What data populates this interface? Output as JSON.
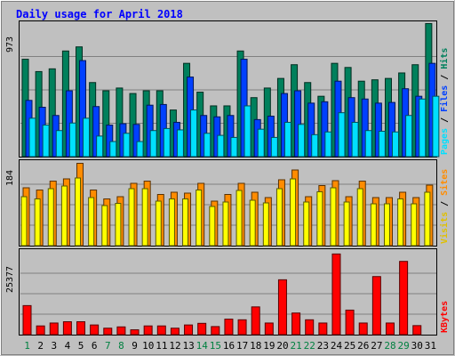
{
  "title": "Daily usage for April 2018",
  "chart_data": [
    {
      "type": "bar",
      "panel": "requests",
      "axis_max_label": "973",
      "ylim": [
        0,
        973
      ],
      "categories": [
        "1",
        "2",
        "3",
        "4",
        "5",
        "6",
        "7",
        "8",
        "9",
        "10",
        "11",
        "12",
        "13",
        "14",
        "15",
        "16",
        "17",
        "18",
        "19",
        "20",
        "21",
        "22",
        "23",
        "24",
        "25",
        "26",
        "27",
        "28",
        "29",
        "30",
        "31"
      ],
      "series": [
        {
          "name": "Hits",
          "color": "#00805c",
          "values": [
            710,
            620,
            640,
            770,
            800,
            540,
            480,
            500,
            460,
            480,
            480,
            340,
            680,
            470,
            370,
            370,
            770,
            430,
            500,
            570,
            670,
            540,
            440,
            680,
            650,
            550,
            560,
            570,
            610,
            670,
            970
          ]
        },
        {
          "name": "Files",
          "color": "#0040ff",
          "values": [
            410,
            360,
            300,
            480,
            700,
            365,
            230,
            240,
            235,
            375,
            380,
            250,
            580,
            300,
            290,
            300,
            710,
            270,
            295,
            460,
            480,
            390,
            400,
            550,
            430,
            420,
            390,
            395,
            495,
            440,
            680
          ]
        },
        {
          "name": "Pages",
          "color": "#00e0ff",
          "values": [
            280,
            230,
            190,
            245,
            280,
            150,
            110,
            170,
            110,
            190,
            205,
            195,
            340,
            170,
            155,
            140,
            370,
            200,
            140,
            250,
            235,
            160,
            180,
            320,
            250,
            190,
            185,
            180,
            300,
            420,
            440
          ]
        }
      ],
      "highlight_days": [
        "1",
        "7",
        "8",
        "14",
        "15",
        "21",
        "22",
        "28",
        "29"
      ]
    },
    {
      "type": "bar",
      "panel": "visits",
      "axis_max_label": "184",
      "ylim": [
        0,
        184
      ],
      "categories": [
        "1",
        "2",
        "3",
        "4",
        "5",
        "6",
        "7",
        "8",
        "9",
        "10",
        "11",
        "12",
        "13",
        "14",
        "15",
        "16",
        "17",
        "18",
        "19",
        "20",
        "21",
        "22",
        "23",
        "24",
        "25",
        "26",
        "27",
        "28",
        "29",
        "30",
        "31"
      ],
      "series": [
        {
          "name": "Sites",
          "color": "#ff8c00",
          "values": [
            130,
            125,
            145,
            150,
            185,
            125,
            105,
            110,
            140,
            145,
            115,
            120,
            118,
            140,
            100,
            115,
            140,
            120,
            108,
            148,
            170,
            110,
            135,
            146,
            110,
            145,
            108,
            108,
            120,
            108,
            136
          ]
        },
        {
          "name": "Visits",
          "color": "#ffff00",
          "values": [
            110,
            105,
            128,
            134,
            152,
            108,
            90,
            95,
            128,
            128,
            100,
            105,
            105,
            125,
            88,
            98,
            124,
            102,
            96,
            128,
            150,
            98,
            121,
            130,
            98,
            128,
            94,
            94,
            105,
            94,
            120
          ]
        }
      ]
    },
    {
      "type": "bar",
      "panel": "kbytes",
      "axis_max_label": "25377",
      "ylim": [
        0,
        25377
      ],
      "categories": [
        "1",
        "2",
        "3",
        "4",
        "5",
        "6",
        "7",
        "8",
        "9",
        "10",
        "11",
        "12",
        "13",
        "14",
        "15",
        "16",
        "17",
        "18",
        "19",
        "20",
        "21",
        "22",
        "23",
        "24",
        "25",
        "26",
        "27",
        "28",
        "29",
        "30",
        "31"
      ],
      "series": [
        {
          "name": "KBytes",
          "color": "#ff0000",
          "values": [
            9000,
            2700,
            3600,
            4000,
            4000,
            3000,
            2000,
            2400,
            1500,
            2700,
            2700,
            2000,
            3000,
            3500,
            2500,
            4800,
            4600,
            8600,
            3600,
            17000,
            6700,
            4600,
            3600,
            25000,
            7600,
            3600,
            18000,
            3600,
            22700,
            2800,
            0
          ]
        }
      ]
    }
  ]
}
